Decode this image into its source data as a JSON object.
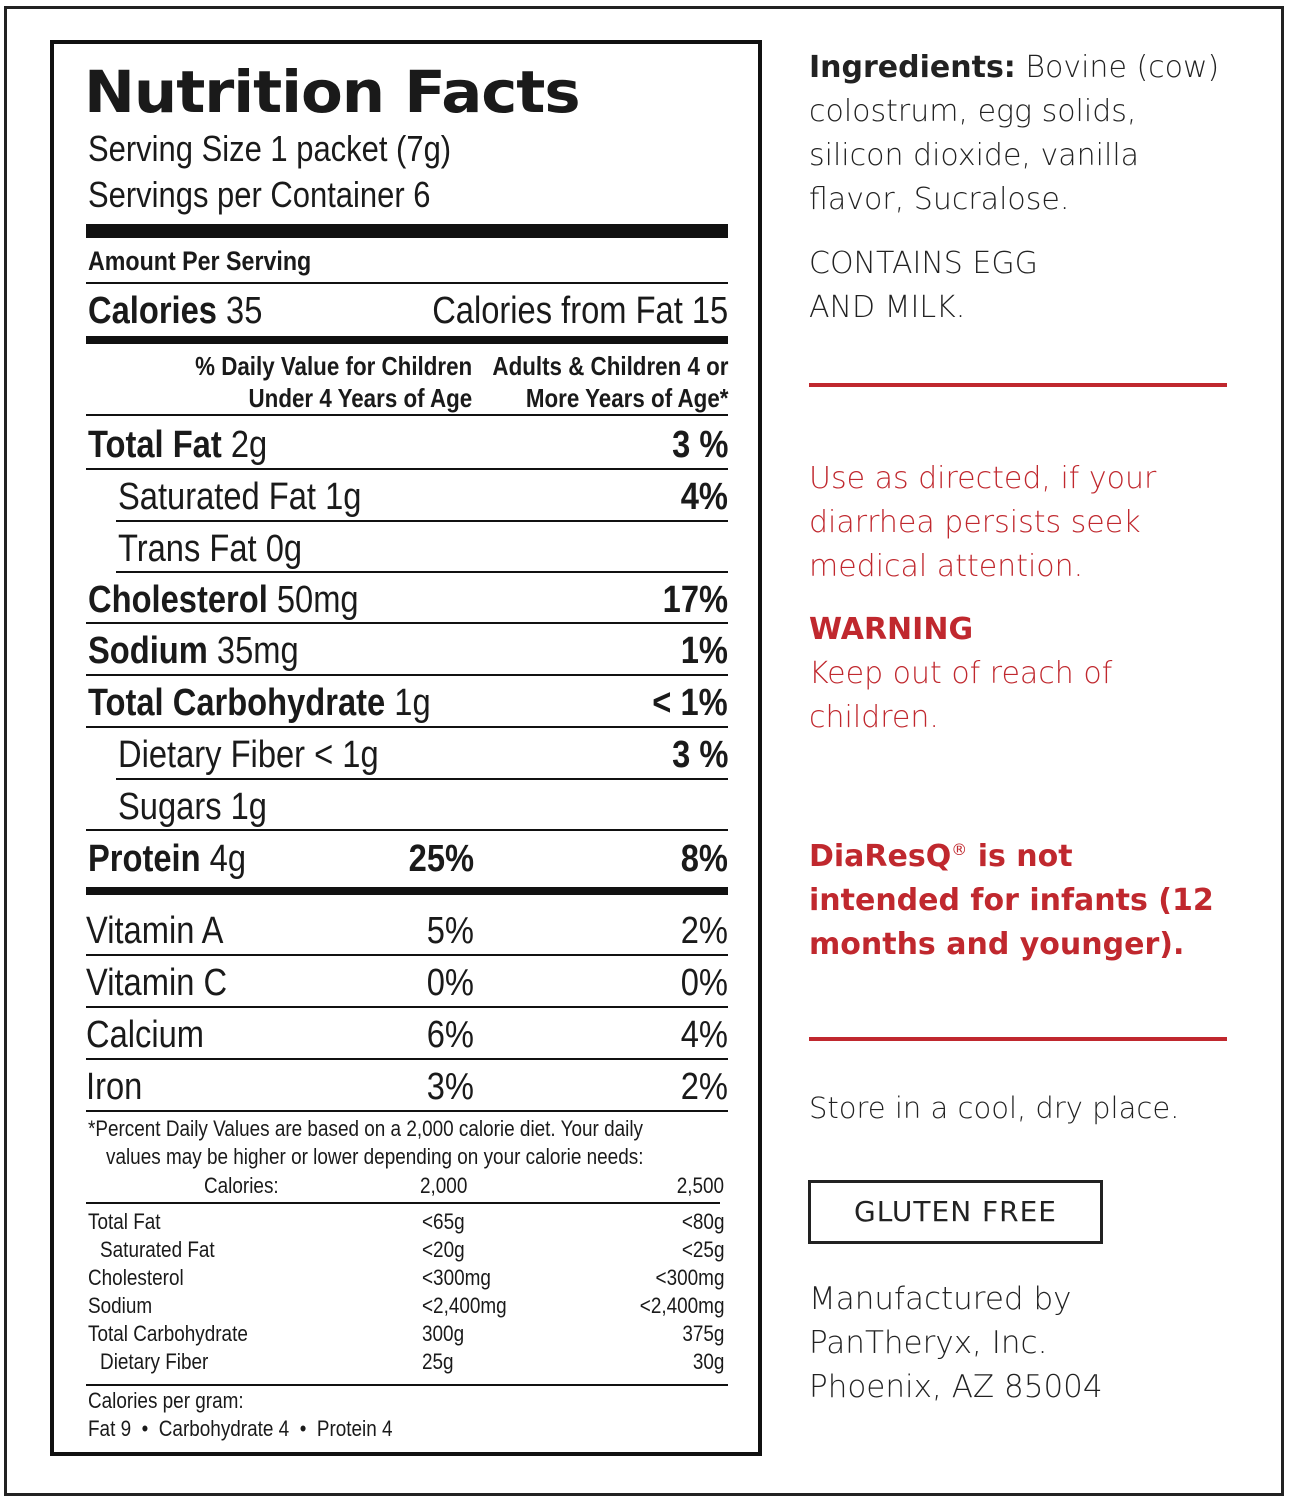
{
  "nutrition": {
    "title": "Nutrition Facts",
    "serving_size": "Serving Size 1 packet (7g)",
    "servings_per_container": "Servings per Container 6",
    "amount_per_serving": "Amount Per Serving",
    "calories_label": "Calories",
    "calories_value": "35",
    "calories_from_fat": "Calories from Fat 15",
    "col_head_children_1": "% Daily Value for Children",
    "col_head_children_2": "Under 4 Years of Age",
    "col_head_adults_1": "Adults & Children 4 or",
    "col_head_adults_2": "More Years of Age*",
    "nutrients": [
      {
        "name": "Total Fat",
        "amount": "2g",
        "children": "",
        "adults": "3 %"
      },
      {
        "name": "Saturated Fat",
        "amount": "1g",
        "children": "",
        "adults": "4%"
      },
      {
        "name": "Trans Fat",
        "amount": "0g",
        "children": "",
        "adults": ""
      },
      {
        "name": "Cholesterol",
        "amount": "50mg",
        "children": "",
        "adults": "17%"
      },
      {
        "name": "Sodium",
        "amount": "35mg",
        "children": "",
        "adults": "1%"
      },
      {
        "name": "Total Carbohydrate",
        "amount": "1g",
        "children": "",
        "adults": "< 1%"
      },
      {
        "name": "Dietary Fiber",
        "amount": "< 1g",
        "children": "",
        "adults": "3 %"
      },
      {
        "name": "Sugars",
        "amount": "1g",
        "children": "",
        "adults": ""
      },
      {
        "name": "Protein",
        "amount": "4g",
        "children": "25%",
        "adults": "8%"
      }
    ],
    "vitamins": [
      {
        "name": "Vitamin A",
        "children": "5%",
        "adults": "2%"
      },
      {
        "name": "Vitamin C",
        "children": "0%",
        "adults": "0%"
      },
      {
        "name": "Calcium",
        "children": "6%",
        "adults": "4%"
      },
      {
        "name": "Iron",
        "children": "3%",
        "adults": "2%"
      }
    ],
    "footnote_1": "*Percent Daily Values are based on a 2,000 calorie diet. Your daily",
    "footnote_2": "values may be higher or lower depending on your calorie needs:",
    "dv_header": {
      "label": "Calories:",
      "col1": "2,000",
      "col2": "2,500"
    },
    "dv_rows": [
      {
        "name": "Total Fat",
        "col1": "<65g",
        "col2": "<80g"
      },
      {
        "name": "Saturated Fat",
        "col1": "<20g",
        "col2": "<25g"
      },
      {
        "name": "Cholesterol",
        "col1": "<300mg",
        "col2": "<300mg"
      },
      {
        "name": "Sodium",
        "col1": "<2,400mg",
        "col2": "<2,400mg"
      },
      {
        "name": "Total Carbohydrate",
        "col1": "300g",
        "col2": "375g"
      },
      {
        "name": "Dietary Fiber",
        "col1": "25g",
        "col2": "30g"
      }
    ],
    "cal_per_gram_1": "Calories per gram:",
    "cal_per_gram_2": "Fat 9  •  Carbohydrate 4  •  Protein 4"
  },
  "side": {
    "ingredients_label": "Ingredients:",
    "ingredients_l1": "Bovine (cow)",
    "ingredients_l2": "colostrum, egg solids,",
    "ingredients_l3": "silicon dioxide, vanilla",
    "ingredients_l4": "flavor, Sucralose.",
    "contains_l1": "CONTAINS EGG",
    "contains_l2": "AND MILK.",
    "use_l1": "Use as directed, if your",
    "use_l2": "diarrhea persists seek",
    "use_l3": "medical attention.",
    "warning_title": "WARNING",
    "warning_l1": "Keep out of reach of",
    "warning_l2": "children.",
    "infant_brand": "DiaResQ",
    "infant_reg": "®",
    "infant_l1_rest": " is not",
    "infant_l2": "intended for infants (12",
    "infant_l3": "months and younger).",
    "store": "Store in a cool, dry place.",
    "gluten_free": "GLUTEN FREE",
    "mfg_l1": "Manufactured by",
    "mfg_l2": "PanTheryx, Inc.",
    "mfg_l3": "Phoenix, AZ 85004"
  },
  "colors": {
    "accent_red": "#c0282e",
    "ink": "#111111"
  }
}
